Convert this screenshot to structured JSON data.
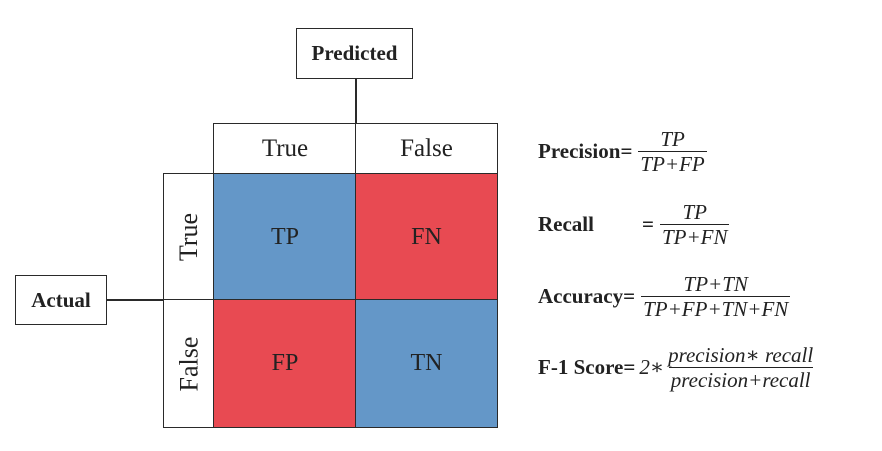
{
  "labels": {
    "predicted": "Predicted",
    "actual": "Actual"
  },
  "columns": {
    "true": "True",
    "false": "False"
  },
  "rows": {
    "true": "True",
    "false": "False"
  },
  "cells": {
    "tp": "TP",
    "fn": "FN",
    "fp": "FP",
    "tn": "TN"
  },
  "colors": {
    "positive_blue": "#6497c8",
    "negative_red": "#e84a52"
  },
  "formulas": {
    "precision": {
      "name": "Precision",
      "eq": "=",
      "num": "TP",
      "den": "TP+FP"
    },
    "recall": {
      "name": "Recall",
      "eq": "=",
      "num": "TP",
      "den": "TP+FN"
    },
    "accuracy": {
      "name": "Accuracy",
      "eq": "=",
      "num": "TP+TN",
      "den": "TP+FP+TN+FN"
    },
    "f1": {
      "name": "F-1 Score",
      "eq": "=",
      "coef": "2∗",
      "num": "precision∗ recall",
      "den": "precision+recall"
    }
  }
}
